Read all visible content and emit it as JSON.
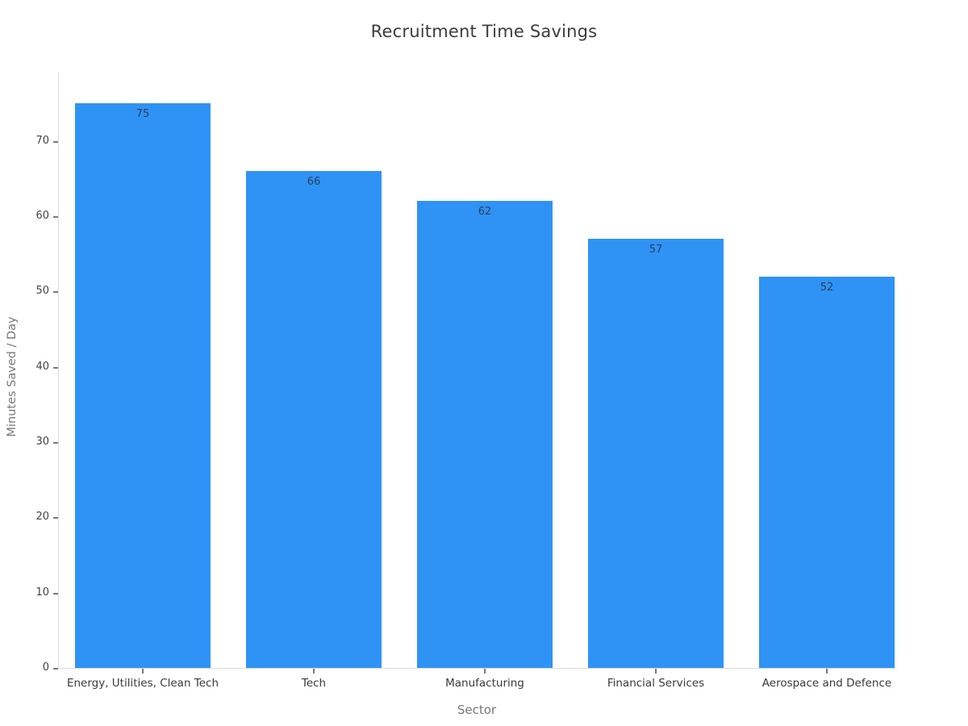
{
  "chart_data": {
    "type": "bar",
    "title": "Recruitment Time Savings",
    "xlabel": "Sector",
    "ylabel": "Minutes Saved / Day",
    "categories": [
      "Energy, Utilities, Clean Tech",
      "Tech",
      "Manufacturing",
      "Financial Services",
      "Aerospace and Defence"
    ],
    "values": [
      75,
      66,
      62,
      57,
      52
    ],
    "value_labels": [
      "75",
      "66",
      "62",
      "57",
      "52"
    ],
    "yticks": [
      0,
      10,
      20,
      30,
      40,
      50,
      60,
      70
    ],
    "ylim": [
      0,
      79.2
    ],
    "grid": false,
    "legend_position": "none",
    "colors": {
      "bar": "#2f93f5",
      "value_label": "#2a3f5f",
      "axis_line": "#dcdcdc",
      "tick_mark": "#7a7a7a",
      "tick_label": "#444444",
      "axis_title": "#777777",
      "title": "#3d3d3d",
      "background": "#ffffff"
    }
  }
}
